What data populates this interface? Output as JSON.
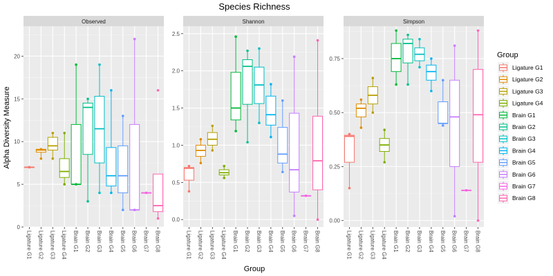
{
  "chart_data": {
    "type": "boxplot",
    "title": "Species Richness",
    "xlabel": "Group",
    "ylabel": "Alpha Diversity Measure",
    "categories": [
      "Ligature G1",
      "Ligature G2",
      "Ligature G3",
      "Ligature G4",
      "Brain G1",
      "Brain G2",
      "Brain G3",
      "Brain G4",
      "Brain G5",
      "Brain G6",
      "Brain G7",
      "Brain G8"
    ],
    "colors": [
      "#F8766D",
      "#DE8C00",
      "#B79F00",
      "#7CAE00",
      "#00BA38",
      "#00C08B",
      "#00BFC4",
      "#00B4F0",
      "#619CFF",
      "#C77CFF",
      "#F564E3",
      "#FF64B0"
    ],
    "legend": {
      "title": "Group",
      "position": "right"
    },
    "panels": [
      {
        "name": "Observed",
        "ylim": [
          0,
          23.5
        ],
        "yticks": [
          0,
          5,
          10,
          15,
          20
        ],
        "ytick_labels": [
          "0",
          "5",
          "10",
          "15",
          "20"
        ],
        "boxes": [
          {
            "q1": 7,
            "median": 7,
            "q3": 7,
            "lo": 7,
            "hi": 7,
            "points": [
              7,
              7
            ]
          },
          {
            "q1": 8.75,
            "median": 9,
            "q3": 9.1,
            "lo": 8,
            "hi": 9.1,
            "points": [
              8,
              9.1
            ]
          },
          {
            "q1": 9,
            "median": 9.5,
            "q3": 10.5,
            "lo": 8,
            "hi": 11,
            "points": [
              8,
              11
            ]
          },
          {
            "q1": 5.8,
            "median": 6.5,
            "q3": 8,
            "lo": 5,
            "hi": 11,
            "points": [
              5,
              11
            ]
          },
          {
            "q1": 5,
            "median": 5,
            "q3": 12,
            "lo": 5,
            "hi": 19,
            "points": [
              5,
              19
            ]
          },
          {
            "q1": 8.5,
            "median": 14,
            "q3": 14.5,
            "lo": 3,
            "hi": 15,
            "points": [
              3,
              15
            ]
          },
          {
            "q1": 7.5,
            "median": 11.5,
            "q3": 15.3,
            "lo": 4,
            "hi": 19,
            "points": [
              4,
              19
            ]
          },
          {
            "q1": 4.8,
            "median": 6,
            "q3": 9.3,
            "lo": 4,
            "hi": 16,
            "points": [
              4,
              16
            ]
          },
          {
            "q1": 4,
            "median": 6,
            "q3": 9.5,
            "lo": 2,
            "hi": 13,
            "points": [
              2,
              13
            ]
          },
          {
            "q1": 2,
            "median": 2,
            "q3": 12,
            "lo": 2,
            "hi": 22,
            "points": [
              2,
              22
            ]
          },
          {
            "q1": 4,
            "median": 4,
            "q3": 4,
            "lo": 4,
            "hi": 4,
            "points": [
              4
            ]
          },
          {
            "q1": 1.8,
            "median": 2.5,
            "q3": 6.2,
            "lo": 1,
            "hi": 6.2,
            "points": [
              1,
              16
            ]
          }
        ]
      },
      {
        "name": "Shannon",
        "ylim": [
          -0.1,
          2.6
        ],
        "yticks": [
          0,
          0.5,
          1,
          1.5,
          2,
          2.5
        ],
        "ytick_labels": [
          "0.0",
          "0.5",
          "1.0",
          "1.5",
          "2.0",
          "2.5"
        ],
        "boxes": [
          {
            "q1": 0.53,
            "median": 0.69,
            "q3": 0.7,
            "lo": 0.38,
            "hi": 0.72,
            "points": [
              0.38,
              0.72
            ]
          },
          {
            "q1": 0.85,
            "median": 0.93,
            "q3": 1.0,
            "lo": 0.76,
            "hi": 1.08,
            "points": [
              0.76,
              1.08
            ]
          },
          {
            "q1": 1.0,
            "median": 1.08,
            "q3": 1.17,
            "lo": 0.93,
            "hi": 1.26,
            "points": [
              0.93,
              1.26
            ]
          },
          {
            "q1": 0.6,
            "median": 0.63,
            "q3": 0.67,
            "lo": 0.56,
            "hi": 0.72,
            "points": [
              0.56,
              0.72
            ]
          },
          {
            "q1": 1.34,
            "median": 1.5,
            "q3": 1.98,
            "lo": 1.19,
            "hi": 2.46,
            "points": [
              1.19,
              2.46
            ]
          },
          {
            "q1": 1.55,
            "median": 2.06,
            "q3": 2.15,
            "lo": 1.04,
            "hi": 2.27,
            "points": [
              1.04,
              2.27
            ]
          },
          {
            "q1": 1.56,
            "median": 1.81,
            "q3": 2.05,
            "lo": 1.3,
            "hi": 2.3,
            "points": [
              1.3,
              2.3
            ]
          },
          {
            "q1": 1.27,
            "median": 1.41,
            "q3": 1.66,
            "lo": 1.11,
            "hi": 1.82,
            "points": [
              1.11,
              1.82
            ]
          },
          {
            "q1": 0.76,
            "median": 0.88,
            "q3": 1.24,
            "lo": 0.64,
            "hi": 1.6,
            "points": [
              0.64,
              1.6
            ]
          },
          {
            "q1": 0.37,
            "median": 0.67,
            "q3": 1.43,
            "lo": 0.05,
            "hi": 2.19,
            "points": [
              0.05,
              2.19
            ]
          },
          {
            "q1": 0.32,
            "median": 0.32,
            "q3": 0.32,
            "lo": 0.32,
            "hi": 0.32,
            "points": [
              0.32
            ]
          },
          {
            "q1": 0.4,
            "median": 0.79,
            "q3": 1.39,
            "lo": 0.0,
            "hi": 2.41,
            "points": [
              0.0,
              2.41
            ]
          }
        ]
      },
      {
        "name": "Simpson",
        "ylim": [
          -0.03,
          0.9
        ],
        "yticks": [
          0,
          0.25,
          0.5,
          0.75
        ],
        "ytick_labels": [
          "0.00",
          "0.25",
          "0.50",
          "0.75"
        ],
        "boxes": [
          {
            "q1": 0.27,
            "median": 0.39,
            "q3": 0.395,
            "lo": 0.15,
            "hi": 0.4,
            "points": [
              0.15,
              0.4
            ]
          },
          {
            "q1": 0.48,
            "median": 0.52,
            "q3": 0.54,
            "lo": 0.43,
            "hi": 0.56,
            "points": [
              0.43,
              0.56
            ]
          },
          {
            "q1": 0.54,
            "median": 0.58,
            "q3": 0.62,
            "lo": 0.5,
            "hi": 0.66,
            "points": [
              0.5,
              0.66
            ]
          },
          {
            "q1": 0.32,
            "median": 0.35,
            "q3": 0.38,
            "lo": 0.27,
            "hi": 0.42,
            "points": [
              0.27,
              0.42
            ]
          },
          {
            "q1": 0.69,
            "median": 0.75,
            "q3": 0.82,
            "lo": 0.63,
            "hi": 0.88,
            "points": [
              0.63,
              0.88
            ]
          },
          {
            "q1": 0.73,
            "median": 0.82,
            "q3": 0.84,
            "lo": 0.63,
            "hi": 0.86,
            "points": [
              0.63,
              0.86
            ]
          },
          {
            "q1": 0.74,
            "median": 0.77,
            "q3": 0.8,
            "lo": 0.71,
            "hi": 0.84,
            "points": [
              0.71,
              0.84
            ]
          },
          {
            "q1": 0.65,
            "median": 0.69,
            "q3": 0.72,
            "lo": 0.6,
            "hi": 0.75,
            "points": [
              0.6,
              0.75
            ]
          },
          {
            "q1": 0.45,
            "median": 0.45,
            "q3": 0.55,
            "lo": 0.44,
            "hi": 0.65,
            "points": [
              0.44,
              0.65
            ]
          },
          {
            "q1": 0.25,
            "median": 0.48,
            "q3": 0.65,
            "lo": 0.02,
            "hi": 0.81,
            "points": [
              0.02,
              0.81
            ]
          },
          {
            "q1": 0.14,
            "median": 0.14,
            "q3": 0.14,
            "lo": 0.14,
            "hi": 0.14,
            "points": [
              0.14
            ]
          },
          {
            "q1": 0.27,
            "median": 0.49,
            "q3": 0.7,
            "lo": 0.0,
            "hi": 0.88,
            "points": [
              0.0,
              0.88
            ]
          }
        ]
      }
    ]
  }
}
